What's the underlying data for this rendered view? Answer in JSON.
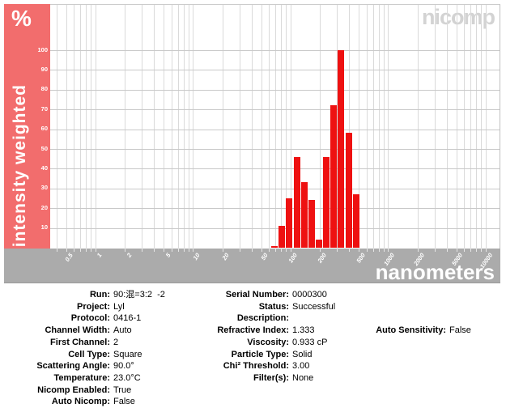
{
  "branding": {
    "logo": "nicomp"
  },
  "chart": {
    "y_axis_unit": "%",
    "y_axis_title": "intensity weighted",
    "x_axis_title": "nanometers"
  },
  "chart_data": {
    "type": "bar",
    "title": "",
    "xlabel": "nanometers",
    "ylabel": "intensity weighted (%)",
    "x_scale": "log",
    "x_unit": "nm",
    "xlim": [
      0.34,
      14000
    ],
    "ylim": [
      0,
      123
    ],
    "grid": true,
    "x_tick_labels": [
      "0.5",
      "1",
      "2",
      "5",
      "10",
      "20",
      "50",
      "100",
      "200",
      "500",
      "1000",
      "2000",
      "5000",
      "10000"
    ],
    "y_ticks": [
      10,
      20,
      30,
      40,
      50,
      60,
      70,
      80,
      90,
      100
    ],
    "points": [
      {
        "nm": 68,
        "pct": 1
      },
      {
        "nm": 81,
        "pct": 11
      },
      {
        "nm": 96,
        "pct": 25
      },
      {
        "nm": 115,
        "pct": 46
      },
      {
        "nm": 137,
        "pct": 33
      },
      {
        "nm": 163,
        "pct": 24
      },
      {
        "nm": 194,
        "pct": 4
      },
      {
        "nm": 231,
        "pct": 46
      },
      {
        "nm": 275,
        "pct": 72
      },
      {
        "nm": 327,
        "pct": 100
      },
      {
        "nm": 390,
        "pct": 58
      },
      {
        "nm": 464,
        "pct": 27
      }
    ],
    "colors": {
      "bar": "#ee1111",
      "sidebar": "#f26d6d",
      "band": "#ababab",
      "grid_vertical": "#dadada",
      "grid_horizontal": "#c9c9c9",
      "logo": "#d3d3d3"
    }
  },
  "info": {
    "columns": [
      {
        "start_row": 0,
        "rows": [
          {
            "label": "Run:",
            "value": "90:混=3:2  -2"
          },
          {
            "label": "Project:",
            "value": "Lyl"
          },
          {
            "label": "Protocol:",
            "value": "0416-1"
          },
          {
            "label": "Channel Width:",
            "value": "Auto"
          },
          {
            "label": "First Channel:",
            "value": "2"
          },
          {
            "label": "Cell Type:",
            "value": "Square"
          },
          {
            "label": "Scattering Angle:",
            "value": "90.0°"
          },
          {
            "label": "Temperature:",
            "value": "23.0°C"
          },
          {
            "label": "Nicomp Enabled:",
            "value": "True"
          },
          {
            "label": "Auto Nicomp:",
            "value": "False"
          }
        ]
      },
      {
        "start_row": 0,
        "rows": [
          {
            "label": "Serial Number:",
            "value": "0000300"
          },
          {
            "label": "Status:",
            "value": "Successful"
          },
          {
            "label": "Description:",
            "value": ""
          },
          {
            "label": "Refractive Index:",
            "value": "1.333"
          },
          {
            "label": "Viscosity:",
            "value": "0.933 cP"
          },
          {
            "label": "Particle Type:",
            "value": "Solid"
          },
          {
            "label": "Chi² Threshold:",
            "value": "3.00"
          },
          {
            "label": "Filter(s):",
            "value": "None"
          }
        ]
      },
      {
        "start_row": 3,
        "rows": [
          {
            "label": "Auto Sensitivity:",
            "value": "False"
          }
        ]
      }
    ]
  }
}
